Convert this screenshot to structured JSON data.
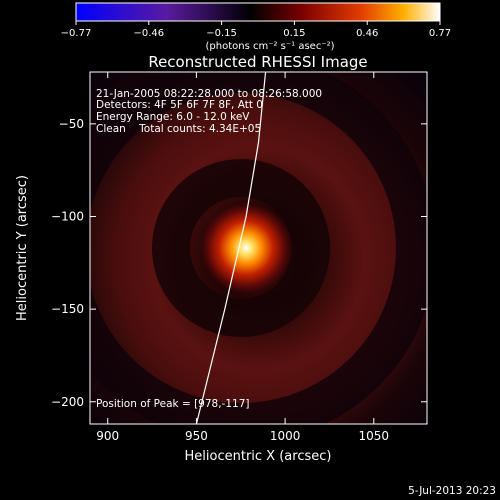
{
  "colorbar": {
    "ticks": [
      "-0.77",
      "-0.46",
      "-0.15",
      "0.15",
      "0.46",
      "0.77"
    ],
    "units": "(photons cm⁻² s⁻¹ asec⁻²)",
    "colors": [
      "#0000ff",
      "#6a1fb0",
      "#000000",
      "#7a0000",
      "#e23a00",
      "#ffb000",
      "#ffffff"
    ]
  },
  "plot": {
    "title": "Reconstructed RHESSI Image",
    "info_lines": [
      "21-Jan-2005 08:22:28.000 to 08:26:58.000",
      "Detectors: 4F 5F 6F 7F 8F, Att 0",
      "Energy Range: 6.0 - 12.0 keV",
      "Clean    Total counts: 4.34E+05"
    ],
    "peak_label": "Position of Peak = [978,-117]",
    "footer_date": "5-Jul-2013 20:23"
  },
  "chart_data": {
    "type": "heatmap",
    "title": "Reconstructed RHESSI Image",
    "xlabel": "Heliocentric X (arcsec)",
    "ylabel": "Heliocentric Y (arcsec)",
    "xlim": [
      890,
      1080
    ],
    "ylim": [
      -212,
      -22
    ],
    "xticks": [
      900,
      950,
      1000,
      1050
    ],
    "yticks": [
      -50,
      -100,
      -150,
      -200
    ],
    "peak": {
      "x": 978,
      "y": -117
    },
    "limb_curve": [
      [
        950,
        -212
      ],
      [
        966,
        -150
      ],
      [
        978,
        -100
      ],
      [
        985,
        -60
      ],
      [
        989,
        -22
      ]
    ],
    "colorscale": {
      "min": -0.77,
      "max": 0.77
    }
  }
}
